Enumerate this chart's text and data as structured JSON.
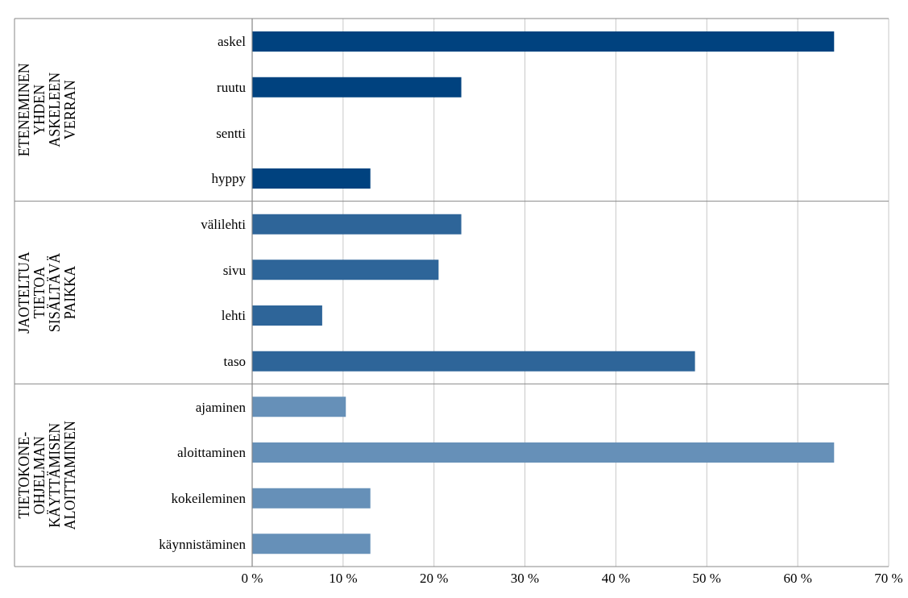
{
  "chart_data": {
    "type": "bar",
    "orientation": "horizontal",
    "categories": [
      "askel",
      "ruutu",
      "sentti",
      "hyppy",
      "välilehti",
      "sivu",
      "lehti",
      "taso",
      "ajaminen",
      "aloittaminen",
      "kokeileminen",
      "käynnistäminen"
    ],
    "values": [
      64,
      23,
      0,
      13,
      23,
      20.5,
      7.7,
      48.7,
      10.3,
      64,
      13,
      13
    ],
    "colors": [
      "#00427f",
      "#00427f",
      "#00427f",
      "#00427f",
      "#2e6599",
      "#2e6599",
      "#2e6599",
      "#2e6599",
      "#6690b8",
      "#6690b8",
      "#6690b8",
      "#6690b8"
    ],
    "xlim": [
      0,
      70
    ],
    "xticks": [
      {
        "value": 0,
        "label": "0 %"
      },
      {
        "value": 10,
        "label": "10 %"
      },
      {
        "value": 20,
        "label": "20 %"
      },
      {
        "value": 30,
        "label": "30 %"
      },
      {
        "value": 40,
        "label": "40 %"
      },
      {
        "value": 50,
        "label": "50 %"
      },
      {
        "value": 60,
        "label": "60 %"
      },
      {
        "value": 70,
        "label": "70 %"
      }
    ],
    "grid": "x",
    "legend": false,
    "annotations": [
      "ETENEMINEN YHDEN ASKELEEN VERRAN",
      "JAOTELTUA TIETOA SISÄLTÄVÄ PAIKKA",
      "TIETOKONE-OHJELMAN KÄYTTÄMISEN ALOITTAMINEN"
    ]
  }
}
